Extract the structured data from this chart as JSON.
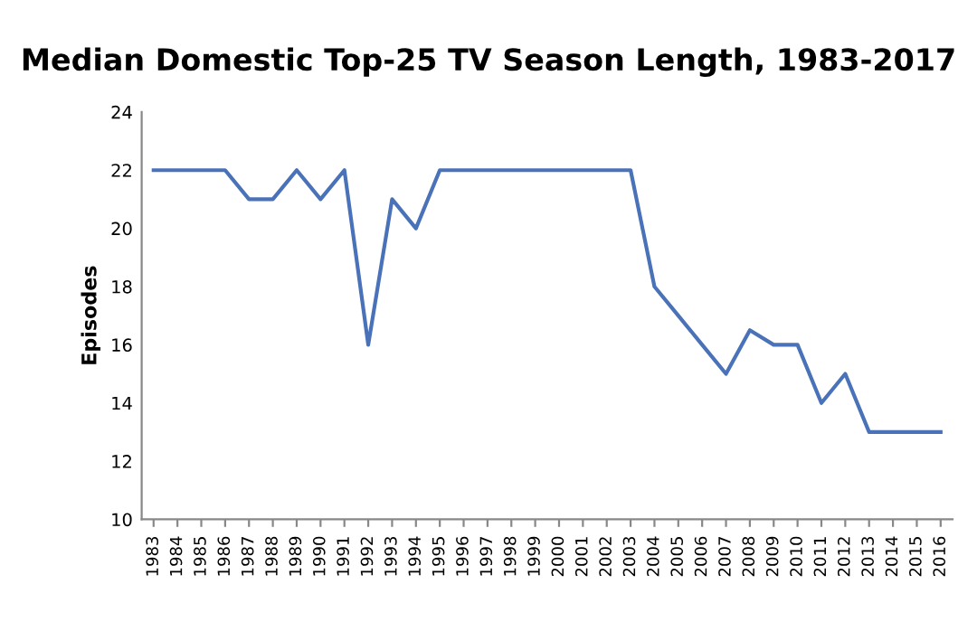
{
  "chart_data": {
    "type": "line",
    "title": "Median Domestic Top-25 TV Season Length, 1983-2017",
    "ylabel": "Episodes",
    "categories": [
      "1983",
      "1984",
      "1985",
      "1986",
      "1987",
      "1988",
      "1989",
      "1990",
      "1991",
      "1992",
      "1993",
      "1994",
      "1995",
      "1996",
      "1997",
      "1998",
      "1999",
      "2000",
      "2001",
      "2002",
      "2003",
      "2004",
      "2005",
      "2006",
      "2007",
      "2008",
      "2009",
      "2010",
      "2011",
      "2012",
      "2013",
      "2014",
      "2015",
      "2016"
    ],
    "series": [
      {
        "color": "#4a72b8",
        "values": [
          22,
          22,
          22,
          22,
          21,
          21,
          22,
          21,
          22,
          16,
          21,
          20,
          22,
          22,
          22,
          22,
          22,
          22,
          22,
          22,
          22,
          18,
          17,
          16,
          15,
          16.5,
          16,
          16,
          14,
          15,
          13,
          13,
          13,
          13
        ]
      }
    ],
    "ylim": [
      10,
      24
    ],
    "yticks": [
      10,
      12,
      14,
      16,
      18,
      20,
      22,
      24
    ],
    "grid": false,
    "legend": false,
    "marker": "none",
    "line_style": "solid"
  }
}
